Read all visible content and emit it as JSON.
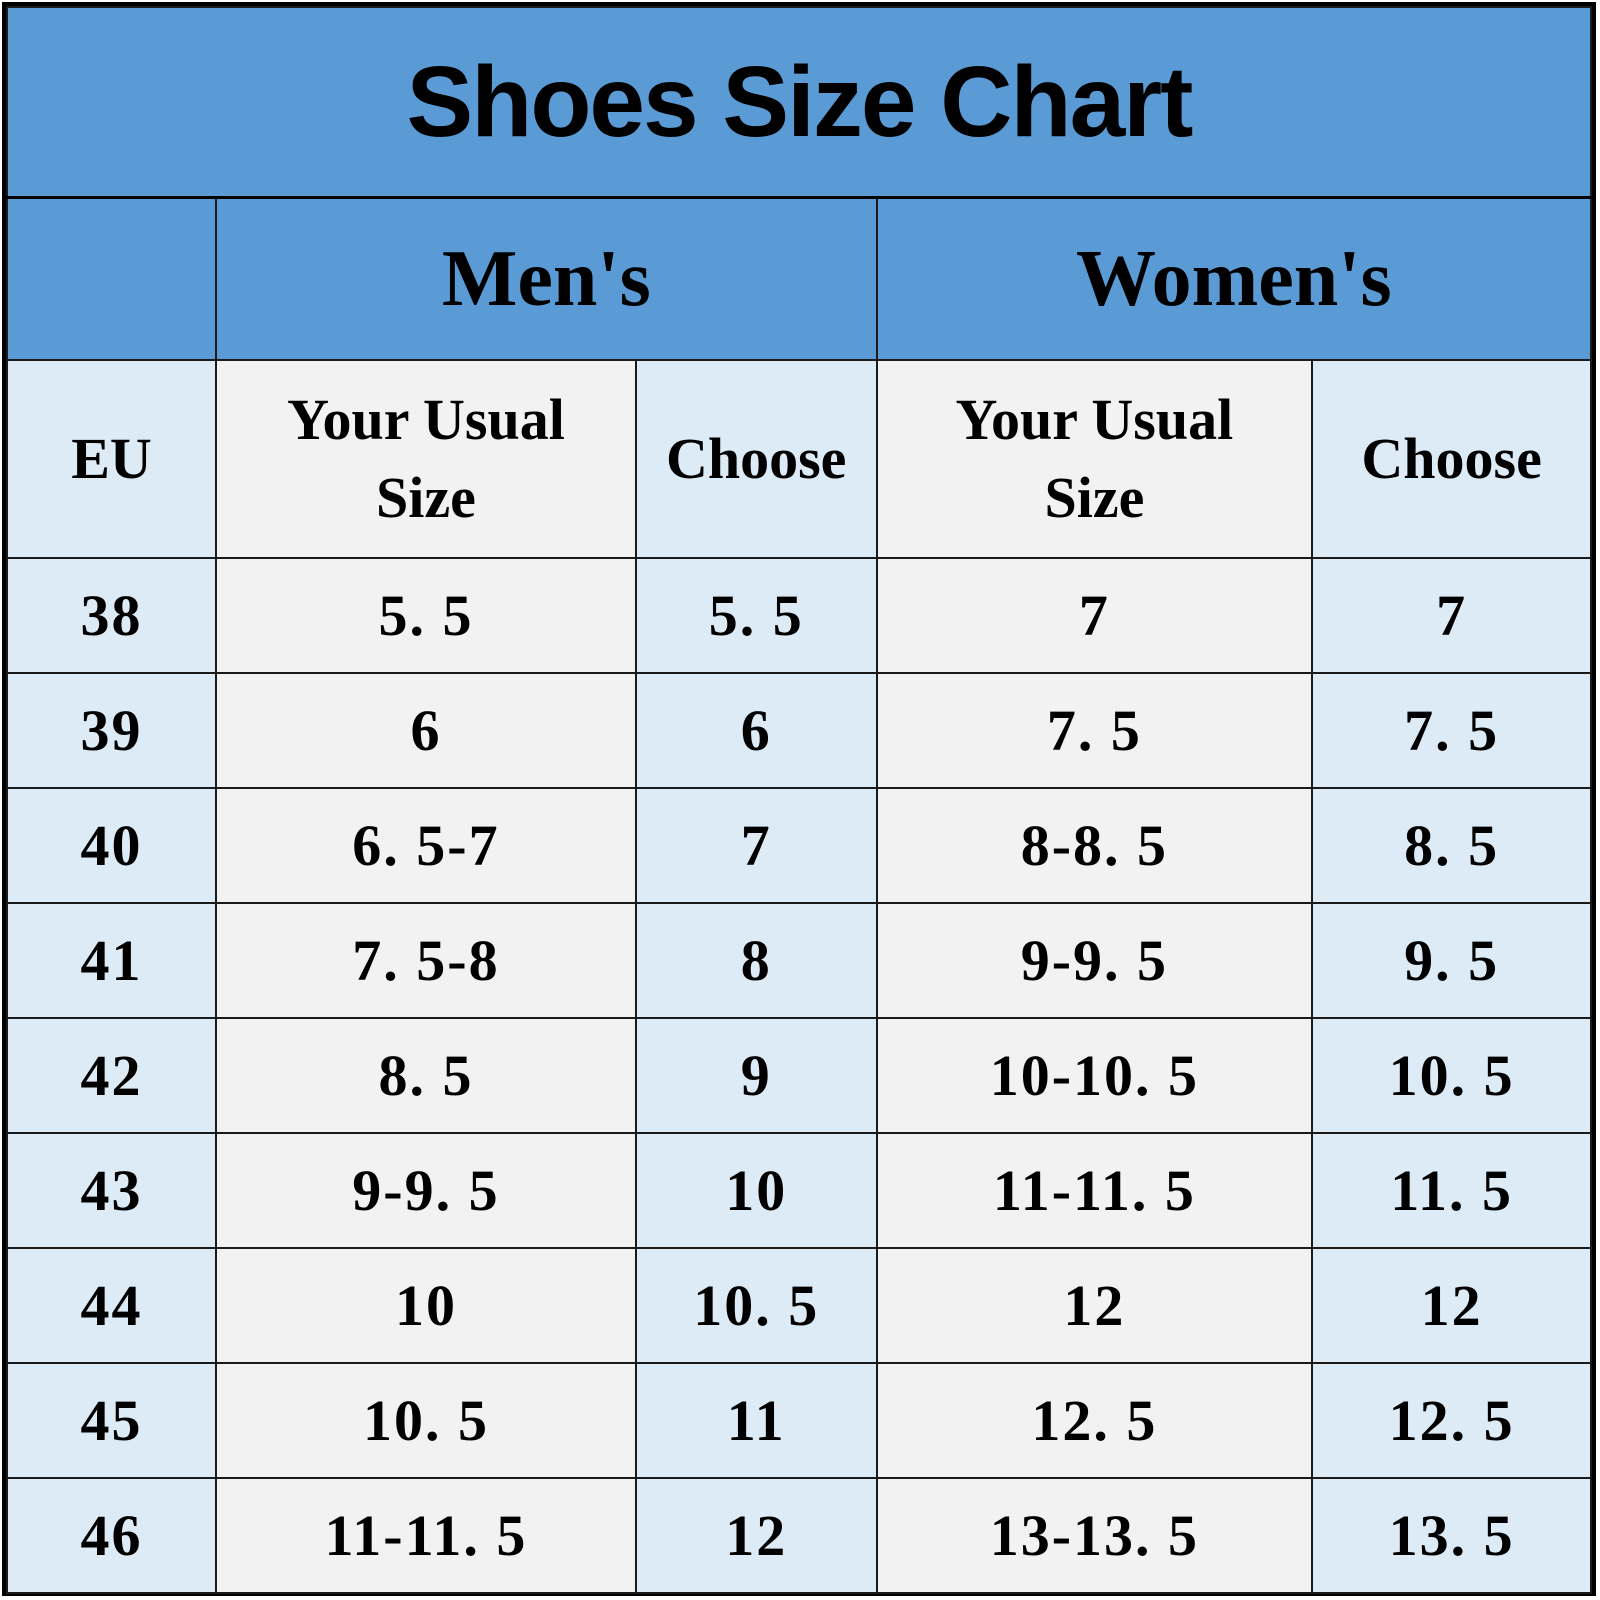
{
  "title": "Shoes Size Chart",
  "groups": {
    "men": "Men's",
    "women": "Women's"
  },
  "headers": {
    "eu": "EU",
    "usual": "Your Usual\nSize",
    "choose": "Choose"
  },
  "colors": {
    "header_blue": "#5b9bd5",
    "light_blue": "#ddebf7",
    "light_grey": "#f2f2f2"
  },
  "rows": [
    {
      "eu": "38",
      "men_usual": "5. 5",
      "men_choose": "5. 5",
      "women_usual": "7",
      "women_choose": "7"
    },
    {
      "eu": "39",
      "men_usual": "6",
      "men_choose": "6",
      "women_usual": "7. 5",
      "women_choose": "7. 5"
    },
    {
      "eu": "40",
      "men_usual": "6. 5-7",
      "men_choose": "7",
      "women_usual": "8-8. 5",
      "women_choose": "8. 5"
    },
    {
      "eu": "41",
      "men_usual": "7. 5-8",
      "men_choose": "8",
      "women_usual": "9-9. 5",
      "women_choose": "9. 5"
    },
    {
      "eu": "42",
      "men_usual": "8. 5",
      "men_choose": "9",
      "women_usual": "10-10. 5",
      "women_choose": "10. 5"
    },
    {
      "eu": "43",
      "men_usual": "9-9. 5",
      "men_choose": "10",
      "women_usual": "11-11. 5",
      "women_choose": "11. 5"
    },
    {
      "eu": "44",
      "men_usual": "10",
      "men_choose": "10. 5",
      "women_usual": "12",
      "women_choose": "12"
    },
    {
      "eu": "45",
      "men_usual": "10. 5",
      "men_choose": "11",
      "women_usual": "12. 5",
      "women_choose": "12. 5"
    },
    {
      "eu": "46",
      "men_usual": "11-11. 5",
      "men_choose": "12",
      "women_usual": "13-13. 5",
      "women_choose": "13. 5"
    }
  ]
}
